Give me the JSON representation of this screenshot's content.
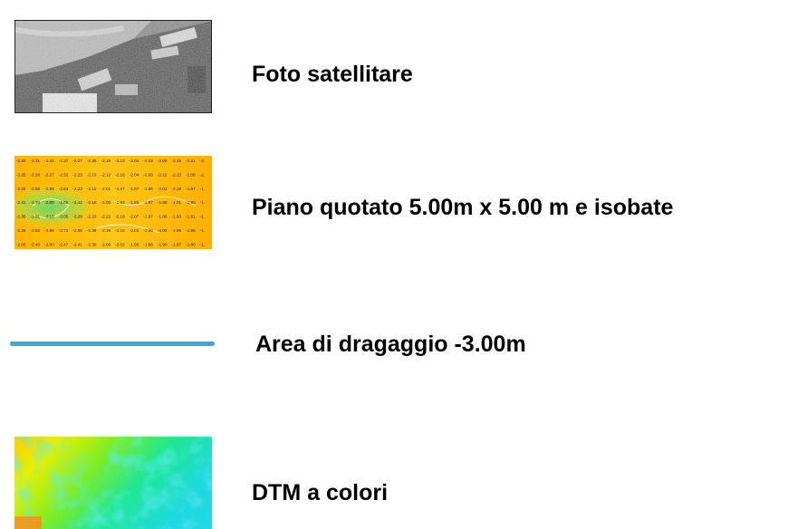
{
  "legend": {
    "items": [
      {
        "label": "Foto satellitare",
        "swatch": "satellite-photo"
      },
      {
        "label": "Piano quotato 5.00m x 5.00 m e isobate",
        "swatch": "elevation-grid"
      },
      {
        "label": "Area di dragaggio -3.00m",
        "swatch": "line",
        "color": "#3aa8e0"
      },
      {
        "label": "DTM a colori",
        "swatch": "color-dtm"
      }
    ]
  },
  "grid_values": [
    [
      "-2.50",
      "-2.31",
      "-2.42",
      "-2.37",
      "-2.27",
      "-2.35",
      "-2.19",
      "-2.13",
      "-2.04",
      "-2.03",
      "-2.08",
      "-2.18",
      "-2.21",
      "-2."
    ],
    [
      "-2.35",
      "-2.28",
      "-2.27",
      "-2.32",
      "-2.23",
      "-2.13",
      "-2.12",
      "-2.16",
      "-2.04",
      "-2.00",
      "-2.12",
      "-2.13",
      "-2.06",
      "-2."
    ],
    [
      "-2.28",
      "-2.58",
      "-2.99",
      "-2.63",
      "-2.23",
      "-2.12",
      "-2.01",
      "-1.97",
      "-1.87",
      "-1.96",
      "-2.03",
      "-2.18",
      "-1.97",
      "-1."
    ],
    [
      "-2.41",
      "-2.70",
      "-2.89",
      "-2.66",
      "-2.42",
      "-2.16",
      "-2.00",
      "-1.93",
      "-1.83",
      "-1.87",
      "-1.86",
      "-1.91",
      "-1.90",
      "-1."
    ],
    [
      "-2.35",
      "-2.91",
      "-3.18",
      "-3.05",
      "-2.29",
      "-2.23",
      "-2.22",
      "-2.18",
      "-2.07",
      "-1.97",
      "-1.88",
      "-1.83",
      "-1.81",
      "-1."
    ],
    [
      "-2.36",
      "-2.82",
      "-2.68",
      "-2.73",
      "-2.58",
      "-2.36",
      "-2.15",
      "-2.10",
      "-2.01",
      "-2.09",
      "-2.06",
      "-1.96",
      "-1.85",
      "-1."
    ],
    [
      "-2.05",
      "-2.40",
      "-2.30",
      "-2.47",
      "-2.41",
      "-2.30",
      "-2.08",
      "-2.02",
      "-1.95",
      "-1.88",
      "-1.90",
      "-1.87",
      "-1.80",
      "-1."
    ]
  ]
}
